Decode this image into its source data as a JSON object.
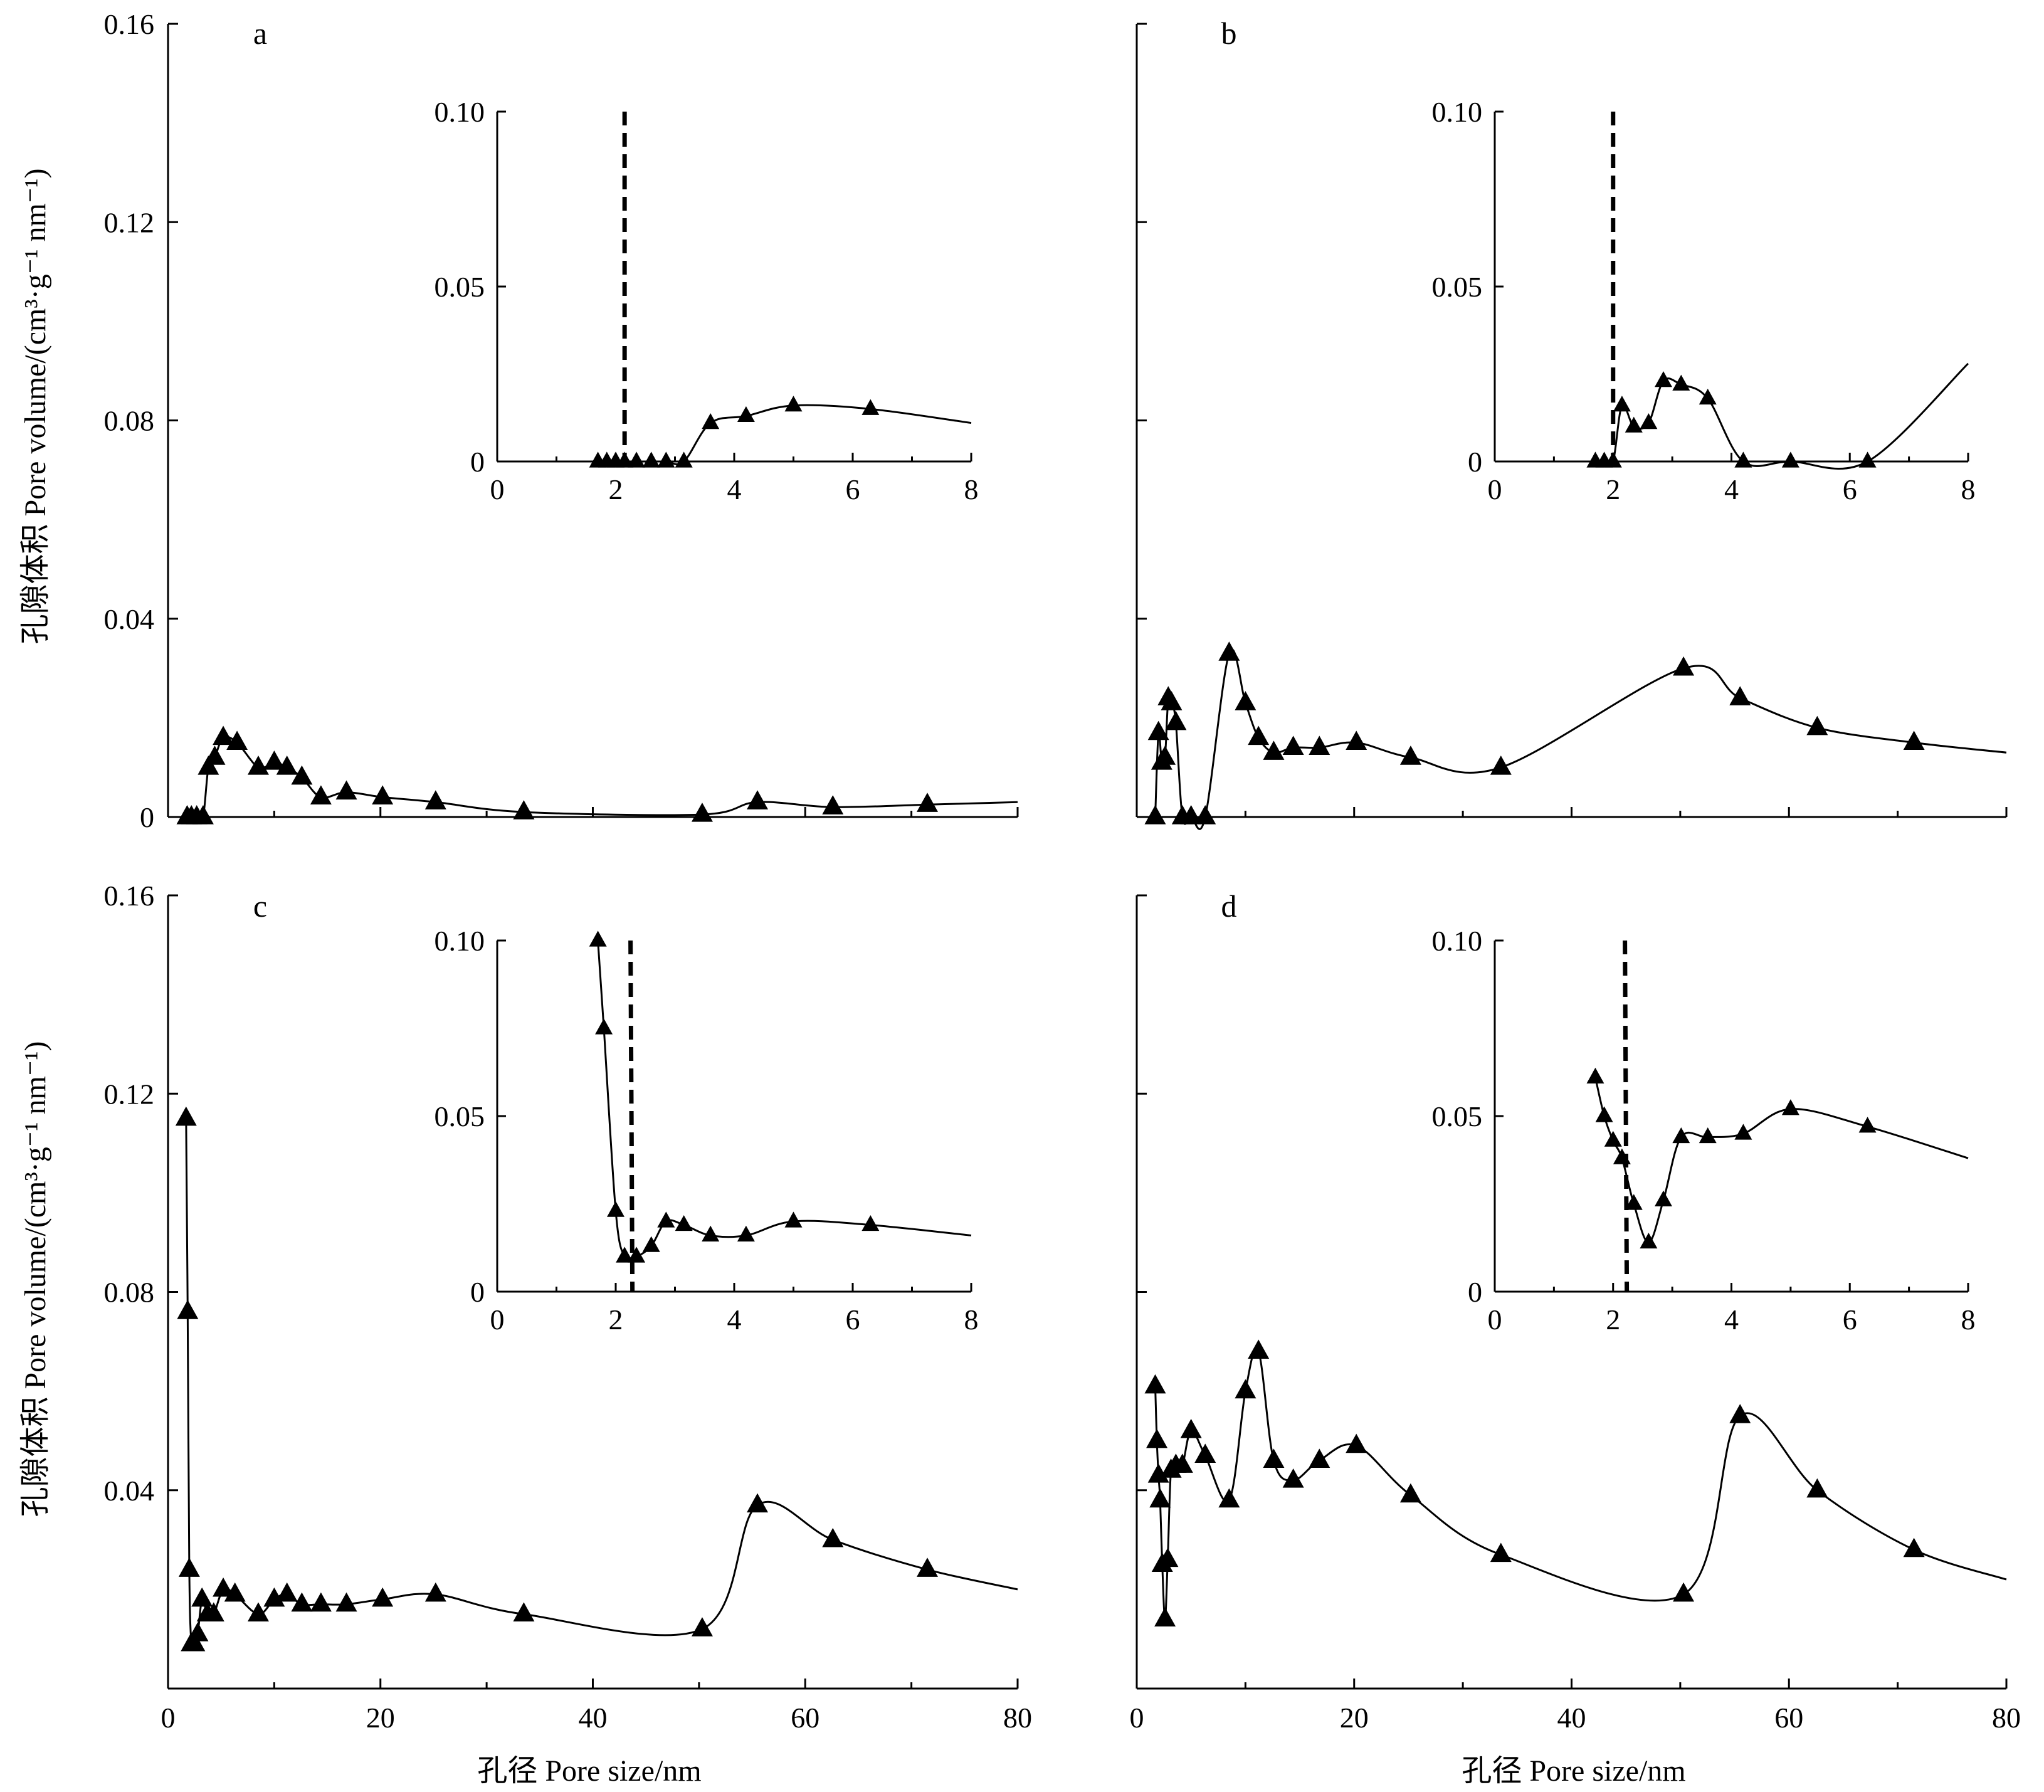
{
  "figure": {
    "ylabel": "孔隙体积  Pore volume/(cm³·g⁻¹ nm⁻¹)",
    "xlabel": "孔径  Pore size/nm",
    "main_ticks_x": [
      "0",
      "20",
      "40",
      "60",
      "80"
    ],
    "main_ticks_y": [
      "0",
      "0.04",
      "0.08",
      "0.12",
      "0.16"
    ],
    "main_ticks_y_cd": [
      "0.16",
      "0.12",
      "0.08",
      "0.04"
    ],
    "inset_ticks_x": [
      "0",
      "2",
      "4",
      "6",
      "8"
    ],
    "inset_ticks_y": [
      "0",
      "0.05",
      "0.10"
    ]
  },
  "chart_data": [
    {
      "type": "line",
      "label": "a",
      "xlim": [
        0,
        80
      ],
      "ylim": [
        0,
        0.16
      ],
      "x": [
        1.8,
        2.2,
        2.7,
        3.3,
        3.8,
        4.4,
        5.2,
        6.5,
        8.5,
        10,
        11.2,
        12.6,
        14.4,
        16.8,
        20.2,
        25.2,
        33.5,
        50.3,
        55.5,
        62.6,
        71.5,
        80
      ],
      "y": [
        0,
        0,
        0,
        0,
        0.01,
        0.012,
        0.016,
        0.015,
        0.01,
        0.011,
        0.01,
        0.008,
        0.004,
        0.005,
        0.004,
        0.003,
        0.001,
        0.0005,
        0.003,
        0.002,
        0.0025,
        0.003
      ],
      "markers": 21,
      "inset": {
        "xlim": [
          0,
          8
        ],
        "ylim": [
          0,
          0.1
        ],
        "x": [
          1.7,
          1.85,
          2.0,
          2.15,
          2.35,
          2.6,
          2.85,
          3.15,
          3.6,
          4.2,
          5.0,
          6.3,
          8.0
        ],
        "y": [
          0,
          0,
          0,
          0,
          0,
          0,
          0,
          0,
          0.011,
          0.013,
          0.016,
          0.015,
          0.011
        ],
        "markers": 12,
        "dashed_x": 2.15
      }
    },
    {
      "type": "line",
      "label": "b",
      "xlim": [
        0,
        80
      ],
      "ylim": [
        0,
        0.16
      ],
      "x": [
        1.7,
        2.0,
        2.3,
        2.6,
        2.9,
        3.2,
        3.6,
        4.2,
        5.0,
        6.3,
        8.5,
        10.0,
        11.2,
        12.6,
        14.4,
        16.8,
        20.2,
        25.2,
        33.5,
        50.3,
        55.5,
        62.6,
        71.5,
        80
      ],
      "y": [
        0,
        0.017,
        0.011,
        0.012,
        0.024,
        0.023,
        0.019,
        0,
        0,
        0,
        0.033,
        0.023,
        0.016,
        0.013,
        0.014,
        0.014,
        0.015,
        0.012,
        0.01,
        0.03,
        0.024,
        0.018,
        0.015,
        0.013
      ],
      "markers": 23,
      "inset": {
        "xlim": [
          0,
          8
        ],
        "ylim": [
          0,
          0.1
        ],
        "x": [
          1.7,
          1.85,
          2.0,
          2.15,
          2.35,
          2.6,
          2.85,
          3.15,
          3.6,
          4.2,
          5.0,
          6.3,
          8.0
        ],
        "y": [
          0,
          0,
          0,
          0.016,
          0.01,
          0.011,
          0.023,
          0.022,
          0.018,
          0,
          0,
          0,
          0.028
        ],
        "markers": 12,
        "dashed_x": 2.0
      }
    },
    {
      "type": "line",
      "label": "c",
      "xlim": [
        0,
        80
      ],
      "ylim": [
        0,
        0.16
      ],
      "x": [
        1.7,
        1.85,
        2.0,
        2.2,
        2.5,
        2.8,
        3.2,
        3.7,
        4.3,
        5.2,
        6.3,
        8.5,
        10.0,
        11.2,
        12.6,
        14.4,
        16.8,
        20.2,
        25.2,
        33.5,
        50.3,
        55.5,
        62.6,
        71.5,
        80
      ],
      "y": [
        0.115,
        0.076,
        0.024,
        0.009,
        0.009,
        0.011,
        0.018,
        0.015,
        0.015,
        0.02,
        0.019,
        0.015,
        0.018,
        0.019,
        0.017,
        0.017,
        0.017,
        0.018,
        0.019,
        0.015,
        0.012,
        0.037,
        0.03,
        0.024,
        0.02
      ],
      "markers": 24,
      "inset": {
        "xlim": [
          0,
          8
        ],
        "ylim": [
          0,
          0.1
        ],
        "x": [
          1.7,
          1.8,
          2.0,
          2.15,
          2.35,
          2.6,
          2.85,
          3.15,
          3.6,
          4.2,
          5.0,
          6.3,
          8.0
        ],
        "y": [
          0.1,
          0.075,
          0.023,
          0.01,
          0.01,
          0.013,
          0.02,
          0.019,
          0.016,
          0.016,
          0.02,
          0.019,
          0.016
        ],
        "markers": 12,
        "dashed_x": 2.25
      }
    },
    {
      "type": "line",
      "label": "d",
      "xlim": [
        0,
        80
      ],
      "ylim": [
        0,
        0.16
      ],
      "x": [
        1.7,
        1.85,
        2.0,
        2.15,
        2.35,
        2.6,
        2.85,
        3.15,
        3.6,
        4.2,
        5.0,
        6.3,
        8.5,
        10.0,
        11.2,
        12.6,
        14.4,
        16.8,
        20.2,
        25.2,
        33.5,
        50.3,
        55.5,
        62.6,
        71.5,
        80
      ],
      "y": [
        0.061,
        0.05,
        0.043,
        0.038,
        0.025,
        0.014,
        0.026,
        0.044,
        0.045,
        0.045,
        0.052,
        0.047,
        0.038,
        0.06,
        0.068,
        0.046,
        0.042,
        0.046,
        0.049,
        0.039,
        0.027,
        0.019,
        0.055,
        0.04,
        0.028,
        0.022
      ],
      "markers": 25,
      "inset": {
        "xlim": [
          0,
          8
        ],
        "ylim": [
          0,
          0.1
        ],
        "x": [
          1.7,
          1.85,
          2.0,
          2.15,
          2.35,
          2.6,
          2.85,
          3.15,
          3.6,
          4.2,
          5.0,
          6.3,
          8.0
        ],
        "y": [
          0.061,
          0.05,
          0.043,
          0.038,
          0.025,
          0.014,
          0.026,
          0.044,
          0.044,
          0.045,
          0.052,
          0.047,
          0.038
        ],
        "markers": 12,
        "dashed_x": 2.2
      }
    }
  ]
}
